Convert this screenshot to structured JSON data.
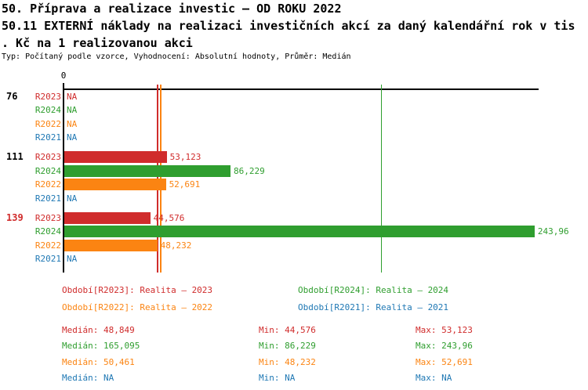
{
  "header": {
    "title_line1": "50. Příprava a realizace investic – OD ROKU 2022",
    "title_line2": "50.11 EXTERNÍ náklady na realizaci investičních akcí za daný kalendářní rok v tis",
    "title_line3": ". Kč na 1 realizovanou akci",
    "meta_line": "Typ: Počítaný podle vzorce, Vyhodnocení: Absolutní hodnoty, Průměr: Medián"
  },
  "colors": {
    "R2023": "#d02c2c",
    "R2024": "#2f9e2f",
    "R2022": "#fb8412",
    "R2021": "#1f78b4",
    "axis": "#000000",
    "group_label": "#000000",
    "group_label_highlight": "#d02c2c"
  },
  "chart_data": {
    "type": "bar",
    "orientation": "horizontal",
    "x_axis": {
      "zero_label": "0",
      "only_tick_shown": "0"
    },
    "series_order": [
      "R2023",
      "R2024",
      "R2022",
      "R2021"
    ],
    "groups": [
      {
        "label": "76",
        "highlight": false,
        "bars": [
          {
            "series": "R2023",
            "value": null,
            "display": "NA"
          },
          {
            "series": "R2024",
            "value": null,
            "display": "NA"
          },
          {
            "series": "R2022",
            "value": null,
            "display": "NA"
          },
          {
            "series": "R2021",
            "value": null,
            "display": "NA"
          }
        ]
      },
      {
        "label": "111",
        "highlight": false,
        "bars": [
          {
            "series": "R2023",
            "value": 53.123,
            "display": "53,123"
          },
          {
            "series": "R2024",
            "value": 86.229,
            "display": "86,229"
          },
          {
            "series": "R2022",
            "value": 52.691,
            "display": "52,691"
          },
          {
            "series": "R2021",
            "value": null,
            "display": "NA"
          }
        ]
      },
      {
        "label": "139",
        "highlight": true,
        "bars": [
          {
            "series": "R2023",
            "value": 44.576,
            "display": "44,576"
          },
          {
            "series": "R2024",
            "value": 243.96,
            "display": "243,96"
          },
          {
            "series": "R2022",
            "value": 48.232,
            "display": "48,232"
          },
          {
            "series": "R2021",
            "value": null,
            "display": "NA"
          }
        ]
      }
    ],
    "median_lines": [
      {
        "series": "R2023",
        "value": 48.849
      },
      {
        "series": "R2022",
        "value": 50.461
      },
      {
        "series": "R2024",
        "value": 165.095
      }
    ]
  },
  "legend": {
    "items": [
      {
        "series": "R2023",
        "label": "Období[R2023]: Realita – 2023",
        "col": 0,
        "row": 0
      },
      {
        "series": "R2024",
        "label": "Období[R2024]: Realita – 2024",
        "col": 1,
        "row": 0
      },
      {
        "series": "R2022",
        "label": "Období[R2022]: Realita – 2022",
        "col": 0,
        "row": 1
      },
      {
        "series": "R2021",
        "label": "Období[R2021]: Realita – 2021",
        "col": 1,
        "row": 1
      }
    ]
  },
  "stats": {
    "labels": {
      "median": "Medián:",
      "min": "Min:",
      "max": "Max:"
    },
    "rows": [
      {
        "series": "R2023",
        "median": "48,849",
        "min": "44,576",
        "max": "53,123"
      },
      {
        "series": "R2024",
        "median": "165,095",
        "min": "86,229",
        "max": "243,96"
      },
      {
        "series": "R2022",
        "median": "50,461",
        "min": "48,232",
        "max": "52,691"
      },
      {
        "series": "R2021",
        "median": "NA",
        "min": "NA",
        "max": "NA"
      }
    ]
  }
}
